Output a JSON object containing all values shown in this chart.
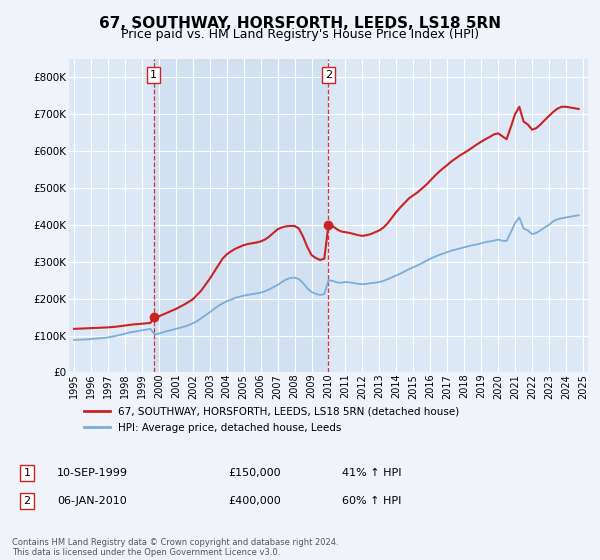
{
  "title": "67, SOUTHWAY, HORSFORTH, LEEDS, LS18 5RN",
  "subtitle": "Price paid vs. HM Land Registry's House Price Index (HPI)",
  "title_fontsize": 11,
  "subtitle_fontsize": 9,
  "xlim": [
    1994.7,
    2025.3
  ],
  "ylim": [
    0,
    850000
  ],
  "yticks": [
    0,
    100000,
    200000,
    300000,
    400000,
    500000,
    600000,
    700000,
    800000
  ],
  "ytick_labels": [
    "£0",
    "£100K",
    "£200K",
    "£300K",
    "£400K",
    "£500K",
    "£600K",
    "£700K",
    "£800K"
  ],
  "xticks": [
    1995,
    1996,
    1997,
    1998,
    1999,
    2000,
    2001,
    2002,
    2003,
    2004,
    2005,
    2006,
    2007,
    2008,
    2009,
    2010,
    2011,
    2012,
    2013,
    2014,
    2015,
    2016,
    2017,
    2018,
    2019,
    2020,
    2021,
    2022,
    2023,
    2024,
    2025
  ],
  "fig_bg_color": "#f0f4fa",
  "plot_bg_color": "#dce8f5",
  "grid_color": "#ffffff",
  "hpi_line_color": "#7aadda",
  "price_line_color": "#cc2222",
  "sale1_x": 1999.7,
  "sale1_y": 150000,
  "sale2_x": 2010.0,
  "sale2_y": 400000,
  "legend_label_price": "67, SOUTHWAY, HORSFORTH, LEEDS, LS18 5RN (detached house)",
  "legend_label_hpi": "HPI: Average price, detached house, Leeds",
  "table_row1": [
    "1",
    "10-SEP-1999",
    "£150,000",
    "41% ↑ HPI"
  ],
  "table_row2": [
    "2",
    "06-JAN-2010",
    "£400,000",
    "60% ↑ HPI"
  ],
  "footer_text": "Contains HM Land Registry data © Crown copyright and database right 2024.\nThis data is licensed under the Open Government Licence v3.0.",
  "hpi_data_x": [
    1995.0,
    1995.25,
    1995.5,
    1995.75,
    1996.0,
    1996.25,
    1996.5,
    1996.75,
    1997.0,
    1997.25,
    1997.5,
    1997.75,
    1998.0,
    1998.25,
    1998.5,
    1998.75,
    1999.0,
    1999.25,
    1999.5,
    1999.75,
    2000.0,
    2000.25,
    2000.5,
    2000.75,
    2001.0,
    2001.25,
    2001.5,
    2001.75,
    2002.0,
    2002.25,
    2002.5,
    2002.75,
    2003.0,
    2003.25,
    2003.5,
    2003.75,
    2004.0,
    2004.25,
    2004.5,
    2004.75,
    2005.0,
    2005.25,
    2005.5,
    2005.75,
    2006.0,
    2006.25,
    2006.5,
    2006.75,
    2007.0,
    2007.25,
    2007.5,
    2007.75,
    2008.0,
    2008.25,
    2008.5,
    2008.75,
    2009.0,
    2009.25,
    2009.5,
    2009.75,
    2010.0,
    2010.25,
    2010.5,
    2010.75,
    2011.0,
    2011.25,
    2011.5,
    2011.75,
    2012.0,
    2012.25,
    2012.5,
    2012.75,
    2013.0,
    2013.25,
    2013.5,
    2013.75,
    2014.0,
    2014.25,
    2014.5,
    2014.75,
    2015.0,
    2015.25,
    2015.5,
    2015.75,
    2016.0,
    2016.25,
    2016.5,
    2016.75,
    2017.0,
    2017.25,
    2017.5,
    2017.75,
    2018.0,
    2018.25,
    2018.5,
    2018.75,
    2019.0,
    2019.25,
    2019.5,
    2019.75,
    2020.0,
    2020.25,
    2020.5,
    2020.75,
    2021.0,
    2021.25,
    2021.5,
    2021.75,
    2022.0,
    2022.25,
    2022.5,
    2022.75,
    2023.0,
    2023.25,
    2023.5,
    2023.75,
    2024.0,
    2024.25,
    2024.5,
    2024.75
  ],
  "hpi_data_y": [
    88000,
    88500,
    89000,
    89500,
    90500,
    91500,
    92500,
    93500,
    95000,
    97000,
    99500,
    102000,
    105000,
    108000,
    110000,
    112000,
    114000,
    116000,
    118000,
    103000,
    105000,
    109000,
    112000,
    115000,
    118000,
    121000,
    124000,
    128000,
    133000,
    139000,
    147000,
    155000,
    163000,
    172000,
    180000,
    187000,
    193000,
    197000,
    202000,
    205000,
    208000,
    210000,
    212000,
    214000,
    216000,
    220000,
    225000,
    231000,
    237000,
    245000,
    252000,
    256000,
    257000,
    253000,
    242000,
    228000,
    218000,
    213000,
    210000,
    212000,
    250000,
    248000,
    244000,
    243000,
    245000,
    244000,
    242000,
    240000,
    239000,
    240000,
    242000,
    243000,
    245000,
    248000,
    253000,
    258000,
    263000,
    268000,
    274000,
    280000,
    285000,
    290000,
    296000,
    302000,
    308000,
    313000,
    318000,
    322000,
    326000,
    330000,
    333000,
    336000,
    339000,
    342000,
    345000,
    347000,
    350000,
    353000,
    355000,
    357000,
    360000,
    357000,
    356000,
    380000,
    405000,
    420000,
    390000,
    385000,
    375000,
    378000,
    385000,
    393000,
    400000,
    410000,
    415000,
    418000,
    420000,
    422000,
    424000,
    426000
  ],
  "price_data_x": [
    1995.0,
    1995.25,
    1995.5,
    1995.75,
    1996.0,
    1996.25,
    1996.5,
    1996.75,
    1997.0,
    1997.25,
    1997.5,
    1997.75,
    1998.0,
    1998.25,
    1998.5,
    1998.75,
    1999.0,
    1999.25,
    1999.5,
    1999.75,
    2000.0,
    2000.25,
    2000.5,
    2000.75,
    2001.0,
    2001.25,
    2001.5,
    2001.75,
    2002.0,
    2002.25,
    2002.5,
    2002.75,
    2003.0,
    2003.25,
    2003.5,
    2003.75,
    2004.0,
    2004.25,
    2004.5,
    2004.75,
    2005.0,
    2005.25,
    2005.5,
    2005.75,
    2006.0,
    2006.25,
    2006.5,
    2006.75,
    2007.0,
    2007.25,
    2007.5,
    2007.75,
    2008.0,
    2008.25,
    2008.5,
    2008.75,
    2009.0,
    2009.25,
    2009.5,
    2009.75,
    2010.0,
    2010.25,
    2010.5,
    2010.75,
    2011.0,
    2011.25,
    2011.5,
    2011.75,
    2012.0,
    2012.25,
    2012.5,
    2012.75,
    2013.0,
    2013.25,
    2013.5,
    2013.75,
    2014.0,
    2014.25,
    2014.5,
    2014.75,
    2015.0,
    2015.25,
    2015.5,
    2015.75,
    2016.0,
    2016.25,
    2016.5,
    2016.75,
    2017.0,
    2017.25,
    2017.5,
    2017.75,
    2018.0,
    2018.25,
    2018.5,
    2018.75,
    2019.0,
    2019.25,
    2019.5,
    2019.75,
    2020.0,
    2020.25,
    2020.5,
    2020.75,
    2021.0,
    2021.25,
    2021.5,
    2021.75,
    2022.0,
    2022.25,
    2022.5,
    2022.75,
    2023.0,
    2023.25,
    2023.5,
    2023.75,
    2024.0,
    2024.25,
    2024.5,
    2024.75
  ],
  "price_data_y": [
    118000,
    118500,
    119000,
    119500,
    120000,
    120500,
    121000,
    121500,
    122000,
    123000,
    124000,
    125500,
    127000,
    128500,
    130000,
    131000,
    132000,
    133000,
    134000,
    150000,
    152000,
    157000,
    162000,
    167000,
    172000,
    178000,
    184000,
    191000,
    198000,
    210000,
    222000,
    238000,
    254000,
    272000,
    290000,
    308000,
    320000,
    328000,
    335000,
    340000,
    345000,
    348000,
    350000,
    352000,
    355000,
    360000,
    368000,
    378000,
    388000,
    393000,
    396000,
    397000,
    397000,
    390000,
    368000,
    340000,
    318000,
    310000,
    305000,
    308000,
    400000,
    396000,
    388000,
    382000,
    380000,
    378000,
    375000,
    372000,
    370000,
    372000,
    375000,
    380000,
    385000,
    393000,
    405000,
    420000,
    435000,
    448000,
    460000,
    472000,
    480000,
    488000,
    498000,
    508000,
    520000,
    532000,
    543000,
    553000,
    562000,
    572000,
    580000,
    588000,
    595000,
    602000,
    610000,
    618000,
    625000,
    632000,
    638000,
    645000,
    648000,
    640000,
    632000,
    665000,
    700000,
    720000,
    680000,
    672000,
    658000,
    662000,
    672000,
    684000,
    695000,
    706000,
    715000,
    720000,
    720000,
    718000,
    716000,
    714000
  ]
}
